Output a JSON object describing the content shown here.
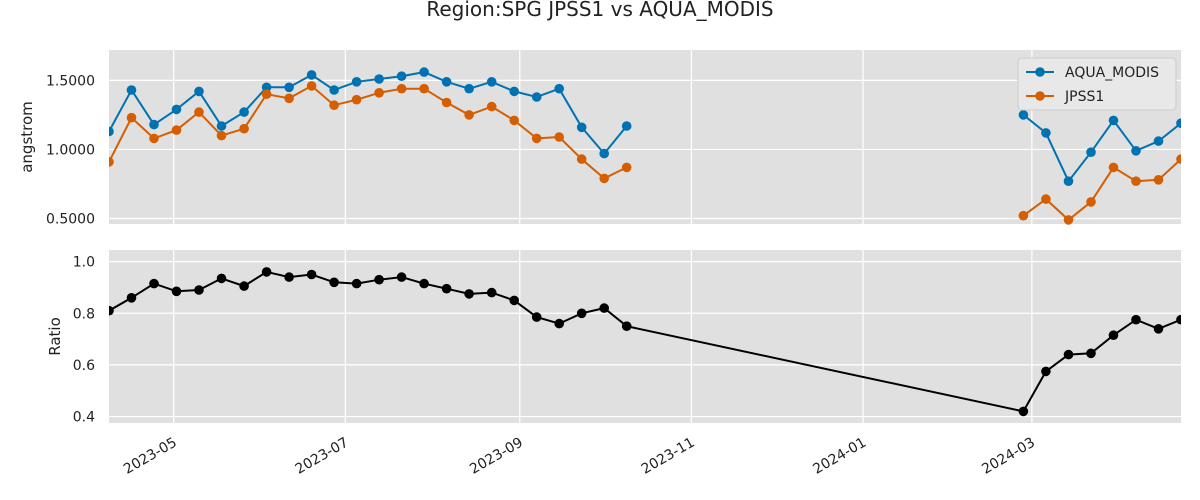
{
  "chart_data": [
    {
      "type": "line",
      "title": "Region:SPG JPSS1 vs AQUA_MODIS",
      "ylabel": "angstrom",
      "ylim": [
        0.46,
        1.72
      ],
      "yticks": [
        0.5,
        1.0,
        1.5
      ],
      "ytick_labels": [
        "0.5000",
        "1.0000",
        "1.5000"
      ],
      "grid": true,
      "legend": "top-right",
      "series": [
        {
          "name": "AQUA_MODIS",
          "color": "#0072b2",
          "points": [
            [
              "2023-04-08",
              1.13
            ],
            [
              "2023-04-16",
              1.43
            ],
            [
              "2023-04-24",
              1.18
            ],
            [
              "2023-05-02",
              1.29
            ],
            [
              "2023-05-10",
              1.42
            ],
            [
              "2023-05-18",
              1.17
            ],
            [
              "2023-05-26",
              1.27
            ],
            [
              "2023-06-03",
              1.45
            ],
            [
              "2023-06-11",
              1.45
            ],
            [
              "2023-06-19",
              1.54
            ],
            [
              "2023-06-27",
              1.43
            ],
            [
              "2023-07-05",
              1.49
            ],
            [
              "2023-07-13",
              1.51
            ],
            [
              "2023-07-21",
              1.53
            ],
            [
              "2023-07-29",
              1.56
            ],
            [
              "2023-08-06",
              1.49
            ],
            [
              "2023-08-14",
              1.44
            ],
            [
              "2023-08-22",
              1.49
            ],
            [
              "2023-08-30",
              1.42
            ],
            [
              "2023-09-07",
              1.38
            ],
            [
              "2023-09-15",
              1.44
            ],
            [
              "2023-09-23",
              1.16
            ],
            [
              "2023-10-01",
              0.97
            ],
            [
              "2023-10-09",
              1.17
            ],
            [
              "2024-02-27",
              1.25
            ],
            [
              "2024-03-06",
              1.12
            ],
            [
              "2024-03-14",
              0.77
            ],
            [
              "2024-03-22",
              0.98
            ],
            [
              "2024-03-30",
              1.21
            ],
            [
              "2024-04-07",
              0.99
            ],
            [
              "2024-04-15",
              1.06
            ],
            [
              "2024-04-23",
              1.19
            ]
          ]
        },
        {
          "name": "JPSS1",
          "color": "#d55e00",
          "points": [
            [
              "2023-04-08",
              0.91
            ],
            [
              "2023-04-16",
              1.23
            ],
            [
              "2023-04-24",
              1.08
            ],
            [
              "2023-05-02",
              1.14
            ],
            [
              "2023-05-10",
              1.27
            ],
            [
              "2023-05-18",
              1.1
            ],
            [
              "2023-05-26",
              1.15
            ],
            [
              "2023-06-03",
              1.4
            ],
            [
              "2023-06-11",
              1.37
            ],
            [
              "2023-06-19",
              1.46
            ],
            [
              "2023-06-27",
              1.32
            ],
            [
              "2023-07-05",
              1.36
            ],
            [
              "2023-07-13",
              1.41
            ],
            [
              "2023-07-21",
              1.44
            ],
            [
              "2023-07-29",
              1.44
            ],
            [
              "2023-08-06",
              1.34
            ],
            [
              "2023-08-14",
              1.25
            ],
            [
              "2023-08-22",
              1.31
            ],
            [
              "2023-08-30",
              1.21
            ],
            [
              "2023-09-07",
              1.08
            ],
            [
              "2023-09-15",
              1.09
            ],
            [
              "2023-09-23",
              0.93
            ],
            [
              "2023-10-01",
              0.79
            ],
            [
              "2023-10-09",
              0.87
            ],
            [
              "2024-02-27",
              0.52
            ],
            [
              "2024-03-06",
              0.64
            ],
            [
              "2024-03-14",
              0.49
            ],
            [
              "2024-03-22",
              0.62
            ],
            [
              "2024-03-30",
              0.87
            ],
            [
              "2024-04-07",
              0.77
            ],
            [
              "2024-04-15",
              0.78
            ],
            [
              "2024-04-23",
              0.93
            ]
          ]
        }
      ]
    },
    {
      "type": "line",
      "ylabel": "Ratio",
      "ylim": [
        0.375,
        1.045
      ],
      "yticks": [
        0.4,
        0.6,
        0.8,
        1.0
      ],
      "ytick_labels": [
        "0.4",
        "0.6",
        "0.8",
        "1.0"
      ],
      "xlim": [
        "2023-04-08",
        "2024-04-23"
      ],
      "xticks": [
        "2023-05-01",
        "2023-07-01",
        "2023-09-01",
        "2023-11-01",
        "2024-01-01",
        "2024-03-01"
      ],
      "xtick_labels": [
        "2023-05",
        "2023-07",
        "2023-09",
        "2023-11",
        "2024-01",
        "2024-03"
      ],
      "grid": true,
      "series": [
        {
          "color": "#000000",
          "points": [
            [
              "2023-04-08",
              0.81
            ],
            [
              "2023-04-16",
              0.86
            ],
            [
              "2023-04-24",
              0.915
            ],
            [
              "2023-05-02",
              0.885
            ],
            [
              "2023-05-10",
              0.89
            ],
            [
              "2023-05-18",
              0.935
            ],
            [
              "2023-05-26",
              0.905
            ],
            [
              "2023-06-03",
              0.96
            ],
            [
              "2023-06-11",
              0.94
            ],
            [
              "2023-06-19",
              0.95
            ],
            [
              "2023-06-27",
              0.92
            ],
            [
              "2023-07-05",
              0.915
            ],
            [
              "2023-07-13",
              0.93
            ],
            [
              "2023-07-21",
              0.94
            ],
            [
              "2023-07-29",
              0.915
            ],
            [
              "2023-08-06",
              0.895
            ],
            [
              "2023-08-14",
              0.875
            ],
            [
              "2023-08-22",
              0.88
            ],
            [
              "2023-08-30",
              0.85
            ],
            [
              "2023-09-07",
              0.785
            ],
            [
              "2023-09-15",
              0.76
            ],
            [
              "2023-09-23",
              0.8
            ],
            [
              "2023-10-01",
              0.82
            ],
            [
              "2023-10-09",
              0.75
            ],
            [
              "2024-02-27",
              0.42
            ],
            [
              "2024-03-06",
              0.575
            ],
            [
              "2024-03-14",
              0.64
            ],
            [
              "2024-03-22",
              0.645
            ],
            [
              "2024-03-30",
              0.715
            ],
            [
              "2024-04-07",
              0.775
            ],
            [
              "2024-04-15",
              0.74
            ],
            [
              "2024-04-23",
              0.775
            ]
          ]
        }
      ]
    }
  ]
}
